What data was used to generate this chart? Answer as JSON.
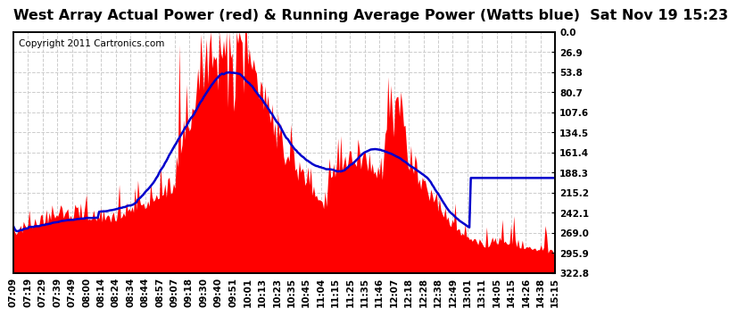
{
  "title": "West Array Actual Power (red) & Running Average Power (Watts blue)  Sat Nov 19 15:23",
  "copyright": "Copyright 2011 Cartronics.com",
  "ylabel_right": [
    "322.8",
    "295.9",
    "269.0",
    "242.1",
    "215.2",
    "188.3",
    "161.4",
    "134.5",
    "107.6",
    "80.7",
    "53.8",
    "26.9",
    "0.0"
  ],
  "ymax": 322.8,
  "ymin": 0.0,
  "yticks": [
    0.0,
    26.9,
    53.8,
    80.7,
    107.6,
    134.5,
    161.4,
    188.3,
    215.2,
    242.1,
    269.0,
    295.9,
    322.8
  ],
  "x_labels": [
    "07:09",
    "07:19",
    "07:29",
    "07:39",
    "07:49",
    "08:00",
    "08:14",
    "08:24",
    "08:34",
    "08:44",
    "08:57",
    "09:07",
    "09:18",
    "09:30",
    "09:40",
    "09:51",
    "10:01",
    "10:13",
    "10:23",
    "10:35",
    "10:45",
    "11:04",
    "11:15",
    "11:25",
    "11:35",
    "11:46",
    "12:07",
    "12:18",
    "12:28",
    "12:38",
    "12:49",
    "13:01",
    "13:11",
    "14:05",
    "14:15",
    "14:26",
    "14:38",
    "15:15"
  ],
  "background_color": "#ffffff",
  "plot_bg_color": "#ffffff",
  "bar_color": "#ff0000",
  "line_color": "#0000cc",
  "title_fontsize": 11.5,
  "copyright_fontsize": 7.5,
  "tick_fontsize": 7.5,
  "grid_color": "#aaaaaa",
  "border_color": "#000000"
}
